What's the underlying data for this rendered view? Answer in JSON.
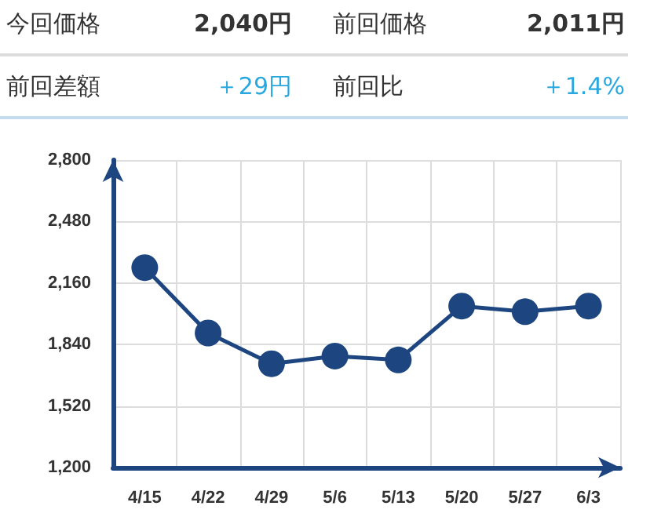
{
  "chart_data": {
    "type": "line",
    "annotations": [
      "今回価格",
      "2,040円",
      "前回価格",
      "2,011円",
      "前回差額",
      "＋29円",
      "前回比",
      "＋1.4%"
    ],
    "categories": [
      "4/15",
      "4/22",
      "4/29",
      "5/6",
      "5/13",
      "5/20",
      "5/27",
      "6/3"
    ],
    "series": [
      {
        "color": "#1d4580",
        "values": [
          2240,
          1900,
          1740,
          1780,
          1760,
          2040,
          2011,
          2040
        ]
      }
    ],
    "ylim": [
      1200,
      2800
    ],
    "yticks": [
      {
        "value": 1200,
        "label": "1,200"
      },
      {
        "value": 1520,
        "label": "1,520"
      },
      {
        "value": 1840,
        "label": "1,840"
      },
      {
        "value": 2160,
        "label": "2,160"
      },
      {
        "value": 2480,
        "label": "2,480"
      },
      {
        "value": 2800,
        "label": "2,800"
      }
    ],
    "grid": true,
    "marker": "circle",
    "line_style": "solid"
  }
}
